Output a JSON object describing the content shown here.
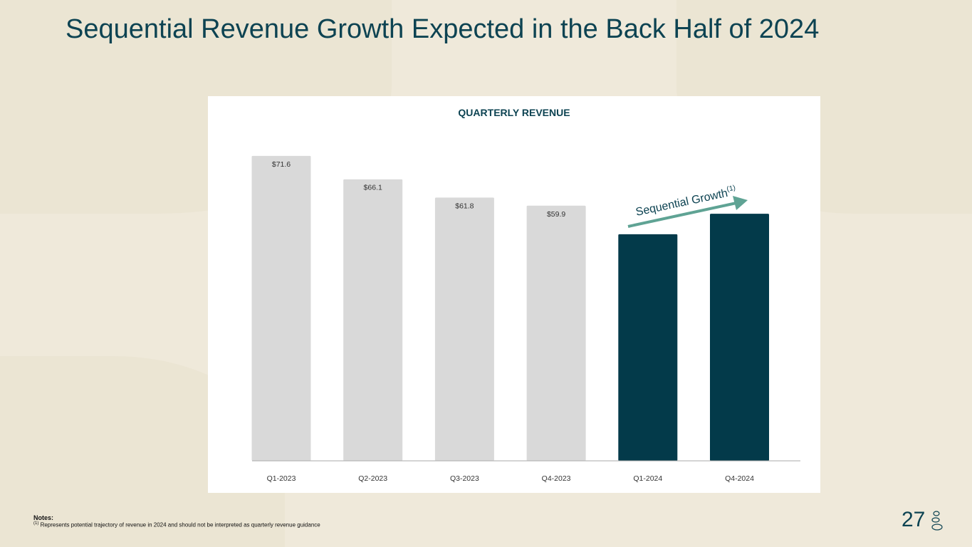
{
  "title": "Sequential Revenue Growth Expected in the Back Half of 2024",
  "chart_data": {
    "type": "bar",
    "title": "QUARTERLY REVENUE",
    "categories": [
      "Q1-2023",
      "Q2-2023",
      "Q3-2023",
      "Q4-2023",
      "Q1-2024",
      "Q4-2024"
    ],
    "values": [
      71.6,
      66.1,
      61.8,
      59.9,
      53.2,
      58.0
    ],
    "data_labels": [
      "$71.6",
      "$66.1",
      "$61.8",
      "$59.9",
      "",
      ""
    ],
    "bar_colors": [
      "#d9d9d9",
      "#d9d9d9",
      "#d9d9d9",
      "#d9d9d9",
      "#033a4a",
      "#033a4a"
    ],
    "ylim": [
      0,
      75
    ],
    "grid": false,
    "annotation": {
      "text": "Sequential Growth",
      "superscript": "(1)",
      "color": "#5fa394"
    }
  },
  "notes": {
    "heading": "Notes:",
    "marker": "(1)",
    "text": "Represents potential trajectory of revenue in 2024 and should not be interpreted as quarterly revenue guidance"
  },
  "page_number": "27",
  "colors": {
    "title": "#0d4352",
    "accent": "#5fa394"
  }
}
